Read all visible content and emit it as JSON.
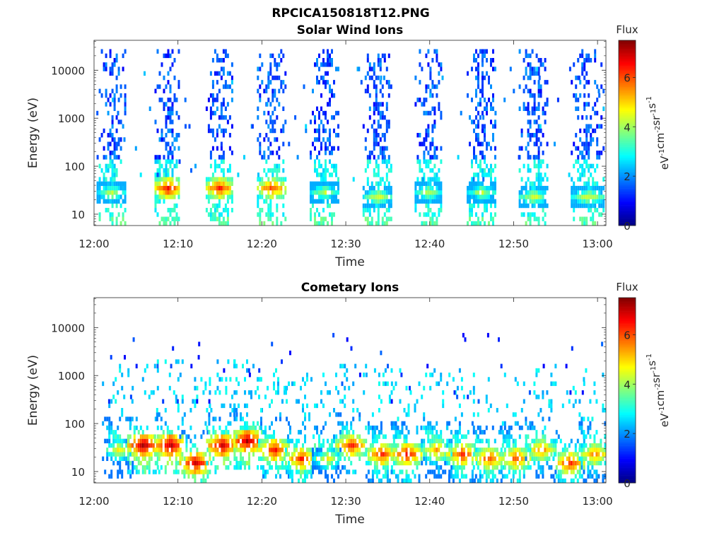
{
  "figure": {
    "title": "RPCICA150818T12.PNG"
  },
  "chart_data": [
    {
      "type": "heatmap",
      "title": "Solar Wind Ions",
      "xlabel": "Time",
      "ylabel": "Energy (eV)",
      "x_ticks": [
        "12:00",
        "12:10",
        "12:20",
        "12:30",
        "12:40",
        "12:50",
        "13:00"
      ],
      "x_range_minutes": [
        0,
        61
      ],
      "y_ticks": [
        "10",
        "100",
        "1000",
        "10000"
      ],
      "y_scale": "log",
      "y_range_eV": [
        5.8,
        42000
      ],
      "colorbar": {
        "title": "Flux",
        "label_parts": [
          "eV",
          "-1",
          "cm",
          "-2",
          "sr",
          "-1",
          "s",
          "-1"
        ],
        "ticks": [
          "0",
          "2",
          "4",
          "6"
        ],
        "range": [
          0,
          7.5
        ],
        "colormap": "jet"
      },
      "sweeps": [
        {
          "t_start": 0.3,
          "t_end": 3.6,
          "peak_flux": 4.6,
          "peak_energy_eV": 30
        },
        {
          "t_start": 7.2,
          "t_end": 10.2,
          "peak_flux": 6.8,
          "peak_energy_eV": 35
        },
        {
          "t_start": 13.3,
          "t_end": 16.5,
          "peak_flux": 6.6,
          "peak_energy_eV": 35
        },
        {
          "t_start": 19.4,
          "t_end": 22.8,
          "peak_flux": 6.4,
          "peak_energy_eV": 35
        },
        {
          "t_start": 25.7,
          "t_end": 29.0,
          "peak_flux": 4.6,
          "peak_energy_eV": 30
        },
        {
          "t_start": 32.0,
          "t_end": 35.5,
          "peak_flux": 4.8,
          "peak_energy_eV": 25
        },
        {
          "t_start": 38.2,
          "t_end": 41.4,
          "peak_flux": 4.6,
          "peak_energy_eV": 30
        },
        {
          "t_start": 44.4,
          "t_end": 47.8,
          "peak_flux": 4.6,
          "peak_energy_eV": 30
        },
        {
          "t_start": 50.6,
          "t_end": 54.0,
          "peak_flux": 4.8,
          "peak_energy_eV": 25
        },
        {
          "t_start": 56.8,
          "t_end": 60.8,
          "peak_flux": 4.8,
          "peak_energy_eV": 25
        }
      ]
    },
    {
      "type": "heatmap",
      "title": "Cometary Ions",
      "xlabel": "Time",
      "ylabel": "Energy (eV)",
      "x_ticks": [
        "12:00",
        "12:10",
        "12:20",
        "12:30",
        "12:40",
        "12:50",
        "13:00"
      ],
      "x_range_minutes": [
        0,
        61
      ],
      "y_ticks": [
        "10",
        "100",
        "1000",
        "10000"
      ],
      "y_scale": "log",
      "y_range_eV": [
        5.8,
        42000
      ],
      "colorbar": {
        "title": "Flux",
        "label_parts": [
          "eV",
          "-1",
          "cm",
          "-2",
          "sr",
          "-1",
          "s",
          "-1"
        ],
        "ticks": [
          "0",
          "2",
          "4",
          "6"
        ],
        "range": [
          0,
          7.5
        ],
        "colormap": "jet"
      },
      "bursts": [
        {
          "t_center": 2.8,
          "peak_flux": 5.0,
          "peak_energy_eV": 30
        },
        {
          "t_center": 5.8,
          "peak_flux": 7.4,
          "peak_energy_eV": 35
        },
        {
          "t_center": 9.0,
          "peak_flux": 7.4,
          "peak_energy_eV": 35
        },
        {
          "t_center": 12.0,
          "peak_flux": 7.2,
          "peak_energy_eV": 15
        },
        {
          "t_center": 15.2,
          "peak_flux": 7.2,
          "peak_energy_eV": 35
        },
        {
          "t_center": 18.2,
          "peak_flux": 7.4,
          "peak_energy_eV": 40
        },
        {
          "t_center": 21.4,
          "peak_flux": 6.8,
          "peak_energy_eV": 30
        },
        {
          "t_center": 24.6,
          "peak_flux": 6.6,
          "peak_energy_eV": 20
        },
        {
          "t_center": 27.8,
          "peak_flux": 5.0,
          "peak_energy_eV": 20
        },
        {
          "t_center": 30.6,
          "peak_flux": 6.6,
          "peak_energy_eV": 35
        },
        {
          "t_center": 34.2,
          "peak_flux": 6.6,
          "peak_energy_eV": 25
        },
        {
          "t_center": 37.2,
          "peak_flux": 6.8,
          "peak_energy_eV": 25
        },
        {
          "t_center": 40.8,
          "peak_flux": 5.8,
          "peak_energy_eV": 30
        },
        {
          "t_center": 43.8,
          "peak_flux": 6.6,
          "peak_energy_eV": 25
        },
        {
          "t_center": 47.0,
          "peak_flux": 6.4,
          "peak_energy_eV": 20
        },
        {
          "t_center": 50.2,
          "peak_flux": 6.4,
          "peak_energy_eV": 20
        },
        {
          "t_center": 53.2,
          "peak_flux": 6.0,
          "peak_energy_eV": 30
        },
        {
          "t_center": 56.6,
          "peak_flux": 6.6,
          "peak_energy_eV": 15
        },
        {
          "t_center": 59.6,
          "peak_flux": 6.0,
          "peak_energy_eV": 25
        }
      ]
    }
  ]
}
